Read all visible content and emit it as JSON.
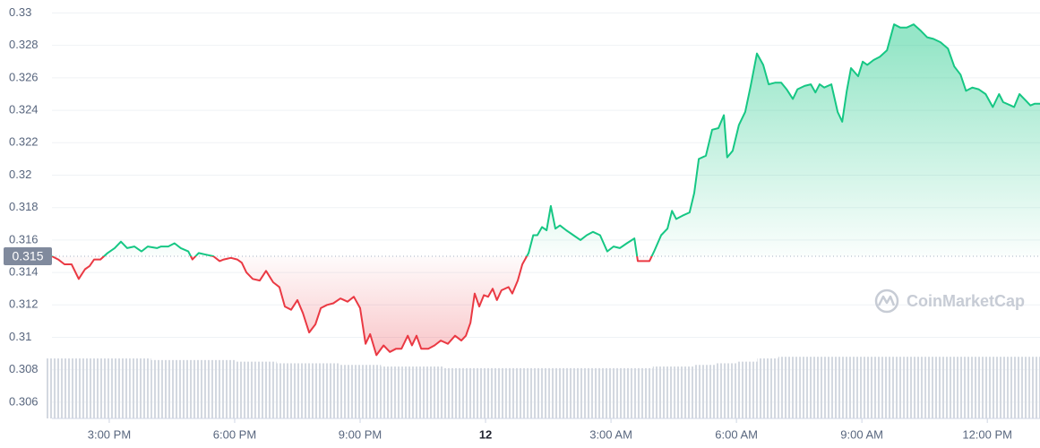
{
  "chart_data": {
    "type": "line",
    "watermark": "CoinMarketCap",
    "baseline": 0.315,
    "color_up": "#16c784",
    "color_down": "#ea3943",
    "grid": true,
    "ylim": [
      0.305,
      0.3308
    ],
    "yticks": [
      0.306,
      0.308,
      0.31,
      0.312,
      0.314,
      0.316,
      0.318,
      0.32,
      0.322,
      0.324,
      0.326,
      0.328,
      0.33
    ],
    "xlim": [
      1.63,
      25.26
    ],
    "xticks": [
      {
        "value": 3,
        "label": "3:00 PM"
      },
      {
        "value": 6,
        "label": "6:00 PM"
      },
      {
        "value": 9,
        "label": "9:00 PM"
      },
      {
        "value": 12,
        "label": "12"
      },
      {
        "value": 15,
        "label": "3:00 AM"
      },
      {
        "value": 18,
        "label": "6:00 AM"
      },
      {
        "value": 21,
        "label": "9:00 AM"
      },
      {
        "value": 24,
        "label": "12:00 PM"
      }
    ],
    "x": [
      1.63,
      1.78,
      1.93,
      2.1,
      2.27,
      2.42,
      2.53,
      2.64,
      2.79,
      2.96,
      3.13,
      3.28,
      3.43,
      3.6,
      3.77,
      3.92,
      4.14,
      4.24,
      4.41,
      4.56,
      4.71,
      4.89,
      4.99,
      5.14,
      5.31,
      5.49,
      5.64,
      5.74,
      5.91,
      6.06,
      6.17,
      6.28,
      6.43,
      6.6,
      6.75,
      6.92,
      7.07,
      7.2,
      7.35,
      7.5,
      7.63,
      7.78,
      7.93,
      8.06,
      8.21,
      8.36,
      8.53,
      8.7,
      8.85,
      9.0,
      9.13,
      9.24,
      9.39,
      9.56,
      9.71,
      9.86,
      9.99,
      10.14,
      10.24,
      10.35,
      10.46,
      10.63,
      10.78,
      10.93,
      11.1,
      11.27,
      11.42,
      11.53,
      11.64,
      11.74,
      11.85,
      11.96,
      12.06,
      12.17,
      12.27,
      12.38,
      12.55,
      12.64,
      12.77,
      12.88,
      13.03,
      13.14,
      13.24,
      13.35,
      13.46,
      13.56,
      13.67,
      13.78,
      13.93,
      14.1,
      14.27,
      14.42,
      14.57,
      14.74,
      14.91,
      15.06,
      15.21,
      15.38,
      15.56,
      15.64,
      15.77,
      15.92,
      16.03,
      16.2,
      16.35,
      16.46,
      16.56,
      16.71,
      16.88,
      16.99,
      17.1,
      17.27,
      17.42,
      17.57,
      17.7,
      17.78,
      17.91,
      18.06,
      18.21,
      18.34,
      18.49,
      18.64,
      18.77,
      18.92,
      19.07,
      19.2,
      19.35,
      19.46,
      19.63,
      19.78,
      19.89,
      19.99,
      20.1,
      20.27,
      20.42,
      20.53,
      20.64,
      20.74,
      20.91,
      21.02,
      21.13,
      21.28,
      21.43,
      21.6,
      21.77,
      21.92,
      22.07,
      22.24,
      22.41,
      22.56,
      22.71,
      22.88,
      23.06,
      23.21,
      23.36,
      23.49,
      23.64,
      23.79,
      23.96,
      24.13,
      24.28,
      24.38,
      24.56,
      24.64,
      24.77,
      24.92,
      25.03,
      25.13,
      25.26
    ],
    "values": [
      0.315,
      0.3148,
      0.3145,
      0.3145,
      0.3136,
      0.3142,
      0.3144,
      0.3148,
      0.3148,
      0.3152,
      0.3155,
      0.3159,
      0.3155,
      0.3156,
      0.3153,
      0.3156,
      0.3155,
      0.3156,
      0.3156,
      0.3158,
      0.3155,
      0.3153,
      0.3148,
      0.3152,
      0.3151,
      0.315,
      0.3147,
      0.3148,
      0.3149,
      0.3148,
      0.3146,
      0.314,
      0.3136,
      0.3135,
      0.3141,
      0.3134,
      0.3131,
      0.3119,
      0.3117,
      0.3123,
      0.3115,
      0.3103,
      0.3108,
      0.3118,
      0.312,
      0.3121,
      0.3124,
      0.3122,
      0.3125,
      0.3118,
      0.3096,
      0.3102,
      0.3089,
      0.3095,
      0.3091,
      0.3093,
      0.3093,
      0.3101,
      0.3095,
      0.3101,
      0.3093,
      0.3093,
      0.3095,
      0.3098,
      0.3096,
      0.3101,
      0.3098,
      0.3101,
      0.3109,
      0.3127,
      0.3119,
      0.3126,
      0.3125,
      0.313,
      0.3123,
      0.3129,
      0.3131,
      0.3127,
      0.3135,
      0.3145,
      0.3152,
      0.3163,
      0.3163,
      0.3168,
      0.3166,
      0.3181,
      0.3167,
      0.3169,
      0.3166,
      0.3163,
      0.316,
      0.3163,
      0.3165,
      0.3163,
      0.3153,
      0.3156,
      0.3155,
      0.3158,
      0.3161,
      0.3147,
      0.3147,
      0.3147,
      0.3153,
      0.3163,
      0.3167,
      0.3178,
      0.3173,
      0.3175,
      0.3177,
      0.3189,
      0.321,
      0.3212,
      0.3228,
      0.3229,
      0.3237,
      0.3211,
      0.3215,
      0.3231,
      0.3239,
      0.3255,
      0.3275,
      0.3268,
      0.3256,
      0.3257,
      0.3257,
      0.3253,
      0.3247,
      0.3253,
      0.3255,
      0.3256,
      0.3251,
      0.3256,
      0.3254,
      0.3256,
      0.3239,
      0.3233,
      0.3252,
      0.3266,
      0.3261,
      0.327,
      0.3268,
      0.3271,
      0.3273,
      0.3277,
      0.3293,
      0.3291,
      0.3291,
      0.3293,
      0.3289,
      0.3285,
      0.3284,
      0.3282,
      0.3278,
      0.3267,
      0.3262,
      0.3252,
      0.3254,
      0.3253,
      0.325,
      0.3242,
      0.325,
      0.3245,
      0.3243,
      0.3242,
      0.325,
      0.3246,
      0.3243,
      0.3244,
      0.3244
    ],
    "volume": {
      "color": "#d3d8e0",
      "x": [
        1.75,
        2.25,
        2.75,
        3.25,
        3.75,
        4.25,
        4.75,
        5.25,
        5.75,
        6.25,
        6.75,
        7.25,
        7.75,
        8.25,
        8.75,
        9.25,
        9.75,
        10.25,
        10.75,
        11.25,
        11.75,
        12.25,
        12.75,
        13.25,
        13.75,
        14.25,
        14.75,
        15.25,
        15.75,
        16.25,
        16.75,
        17.25,
        17.75,
        18.25,
        18.75,
        19.25,
        19.75,
        20.25,
        20.75,
        21.25,
        21.75,
        22.25,
        22.75,
        23.25,
        23.75,
        24.25,
        24.75,
        25.25
      ],
      "values": [
        0.3087,
        0.3087,
        0.3087,
        0.3087,
        0.3087,
        0.3086,
        0.3086,
        0.3086,
        0.3086,
        0.3085,
        0.3085,
        0.3084,
        0.3084,
        0.3084,
        0.3083,
        0.3083,
        0.3082,
        0.3082,
        0.3082,
        0.3081,
        0.3081,
        0.3081,
        0.3081,
        0.3081,
        0.3081,
        0.3081,
        0.3081,
        0.3081,
        0.3081,
        0.3082,
        0.3082,
        0.3083,
        0.3084,
        0.3085,
        0.3087,
        0.3088,
        0.3088,
        0.3088,
        0.3088,
        0.3088,
        0.3088,
        0.3088,
        0.3088,
        0.3088,
        0.3088,
        0.3088,
        0.3088,
        0.3088
      ]
    }
  }
}
